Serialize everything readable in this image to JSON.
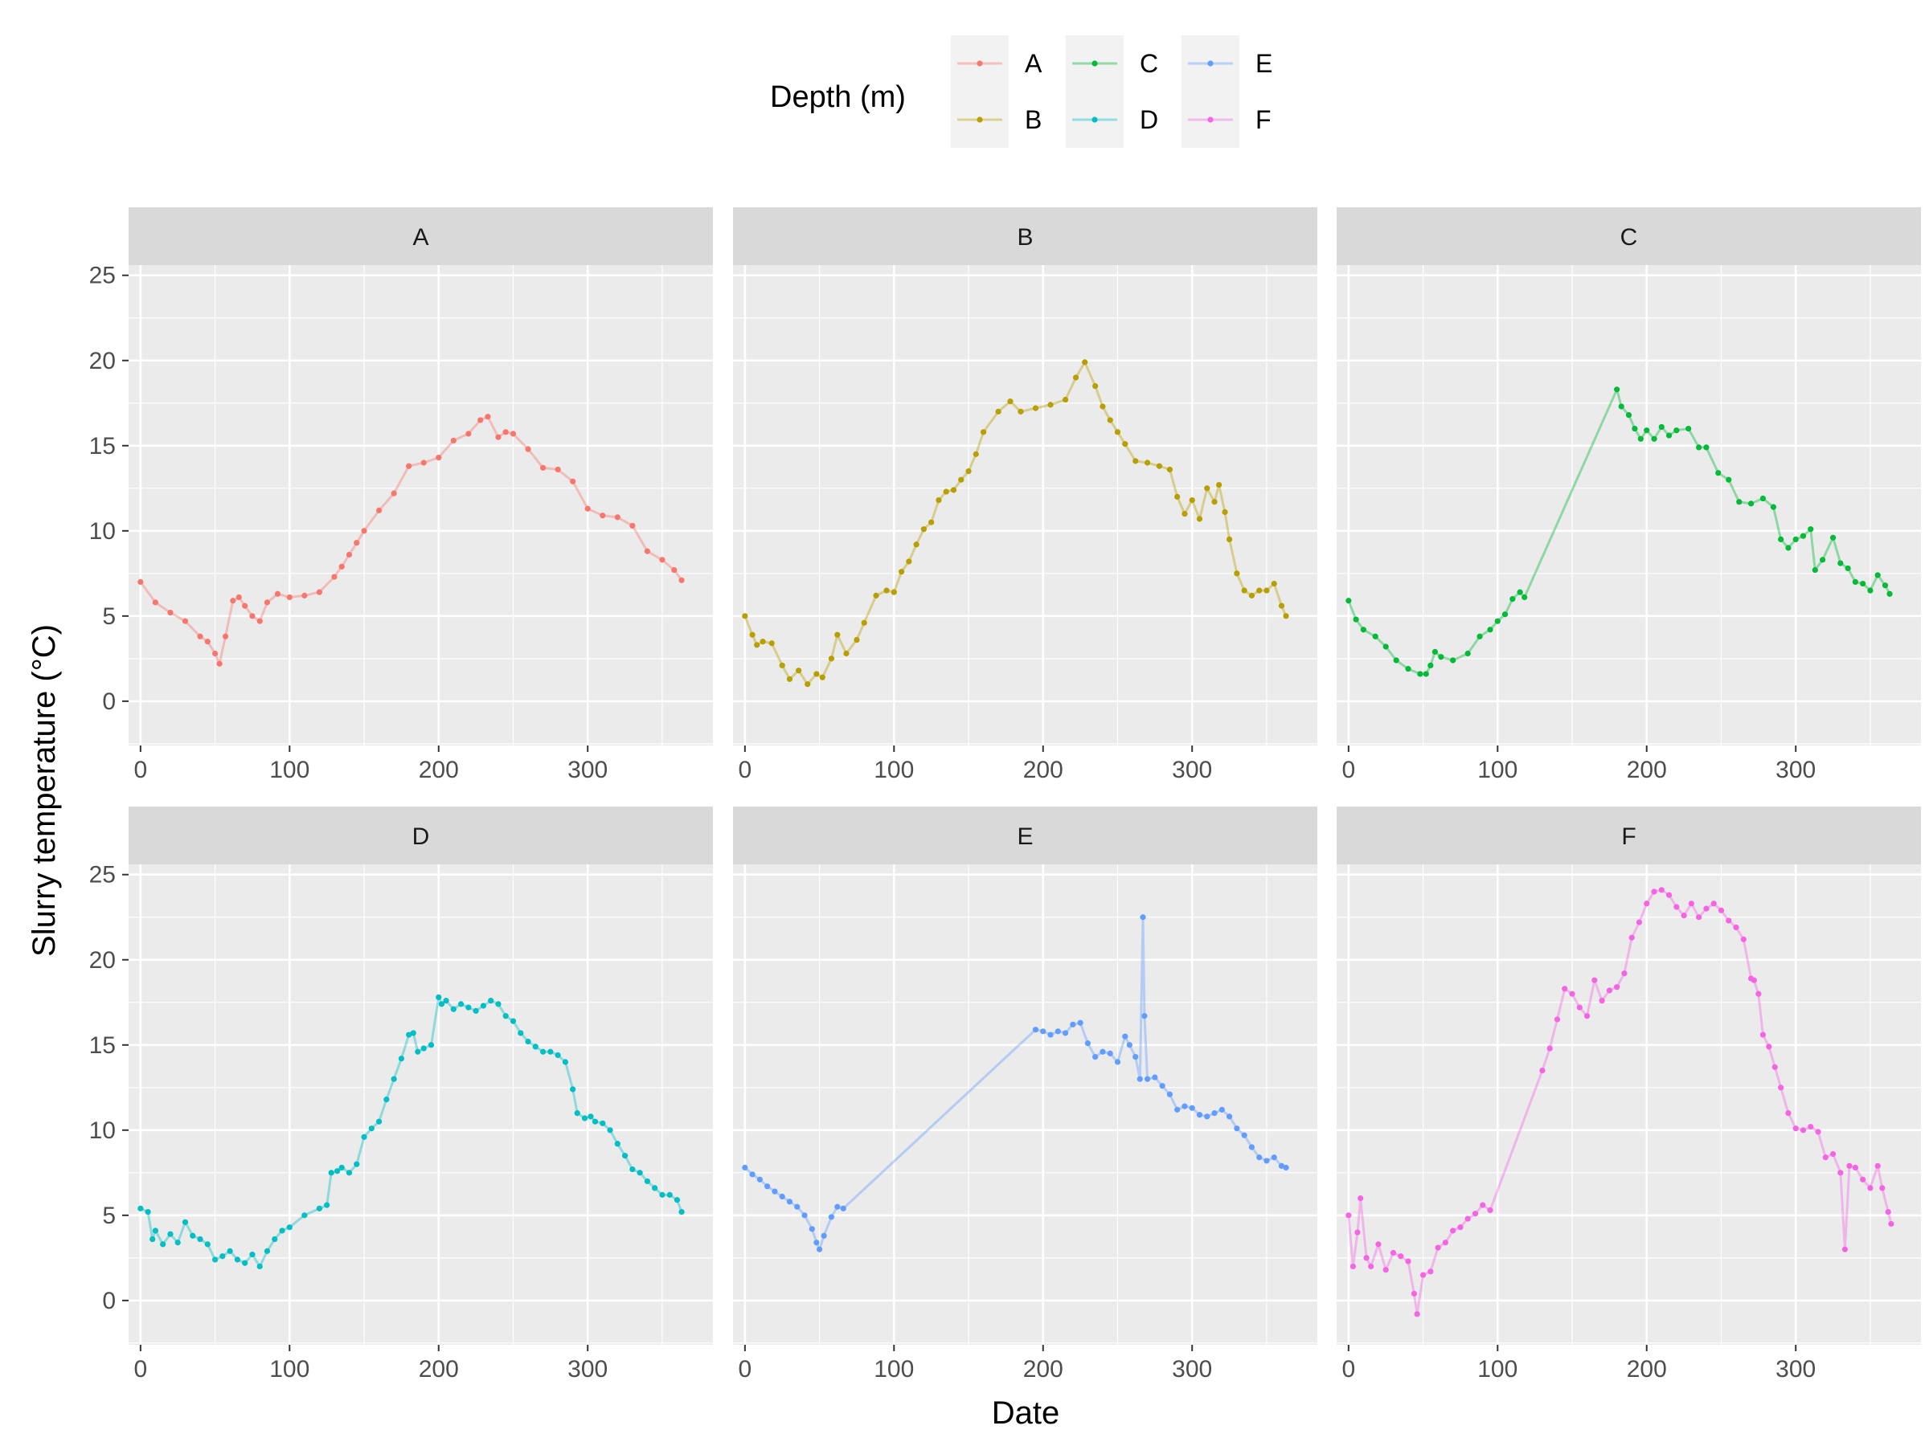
{
  "chart_data": {
    "type": "line",
    "xlabel": "Date",
    "ylabel": "Slurry temperature (°C)",
    "xlim": [
      -8,
      384
    ],
    "ylim": [
      -2.6,
      25.6
    ],
    "x_ticks": [
      0,
      100,
      200,
      300
    ],
    "y_ticks": [
      0,
      5,
      10,
      15,
      20,
      25
    ],
    "grid": true,
    "legend": {
      "title": "Depth (m)",
      "position": "top",
      "entries": [
        "A",
        "B",
        "C",
        "D",
        "E",
        "F"
      ]
    },
    "colors": {
      "A": "#F8766D",
      "B": "#B79F00",
      "C": "#00BA38",
      "D": "#00BFC4",
      "E": "#619CFF",
      "F": "#F564E3",
      "panel_bg": "#EBEBEB",
      "strip_bg": "#D9D9D9",
      "grid": "#FFFFFF"
    },
    "series": [
      {
        "name": "A",
        "x": [
          0,
          10,
          20,
          30,
          40,
          45,
          50,
          53,
          57,
          62,
          66,
          70,
          75,
          80,
          85,
          92,
          100,
          110,
          120,
          130,
          135,
          140,
          145,
          150,
          160,
          170,
          180,
          190,
          200,
          210,
          220,
          228,
          233,
          240,
          245,
          250,
          260,
          270,
          280,
          290,
          300,
          310,
          320,
          330,
          340,
          350,
          358,
          363
        ],
        "y": [
          7.0,
          5.8,
          5.2,
          4.7,
          3.8,
          3.5,
          2.8,
          2.2,
          3.8,
          5.9,
          6.1,
          5.6,
          5.0,
          4.7,
          5.8,
          6.3,
          6.1,
          6.2,
          6.4,
          7.3,
          7.9,
          8.6,
          9.3,
          10.0,
          11.2,
          12.2,
          13.8,
          14.0,
          14.3,
          15.3,
          15.7,
          16.5,
          16.7,
          15.5,
          15.8,
          15.7,
          14.8,
          13.7,
          13.6,
          12.9,
          11.3,
          10.9,
          10.8,
          10.3,
          8.8,
          8.3,
          7.7,
          7.1
        ]
      },
      {
        "name": "B",
        "x": [
          0,
          5,
          8,
          12,
          18,
          25,
          30,
          36,
          42,
          48,
          52,
          58,
          62,
          68,
          75,
          80,
          88,
          95,
          100,
          105,
          110,
          115,
          120,
          125,
          130,
          135,
          140,
          145,
          150,
          155,
          160,
          170,
          178,
          185,
          195,
          205,
          215,
          222,
          228,
          235,
          240,
          245,
          250,
          255,
          262,
          270,
          278,
          285,
          290,
          295,
          300,
          305,
          310,
          315,
          318,
          322,
          325,
          330,
          335,
          340,
          345,
          350,
          355,
          360,
          363
        ],
        "y": [
          5.0,
          3.9,
          3.3,
          3.5,
          3.4,
          2.1,
          1.3,
          1.8,
          1.0,
          1.6,
          1.4,
          2.5,
          3.9,
          2.8,
          3.6,
          4.6,
          6.2,
          6.5,
          6.4,
          7.6,
          8.2,
          9.2,
          10.1,
          10.5,
          11.8,
          12.3,
          12.4,
          13.0,
          13.5,
          14.5,
          15.8,
          17.0,
          17.6,
          17.0,
          17.2,
          17.4,
          17.7,
          19.0,
          19.9,
          18.5,
          17.3,
          16.5,
          15.8,
          15.1,
          14.1,
          14.0,
          13.8,
          13.6,
          12.0,
          11.0,
          11.8,
          10.7,
          12.5,
          11.7,
          12.7,
          11.1,
          9.5,
          7.5,
          6.5,
          6.2,
          6.5,
          6.5,
          6.9,
          5.6,
          5.0
        ]
      },
      {
        "name": "C",
        "x": [
          0,
          5,
          10,
          18,
          25,
          32,
          40,
          48,
          52,
          55,
          58,
          62,
          70,
          80,
          88,
          95,
          100,
          105,
          110,
          115,
          118,
          180,
          183,
          188,
          192,
          196,
          200,
          205,
          210,
          215,
          220,
          228,
          235,
          240,
          248,
          255,
          262,
          270,
          278,
          285,
          290,
          295,
          300,
          305,
          310,
          313,
          318,
          325,
          330,
          335,
          340,
          345,
          350,
          355,
          360,
          363
        ],
        "y": [
          5.9,
          4.8,
          4.2,
          3.8,
          3.2,
          2.4,
          1.9,
          1.6,
          1.6,
          2.1,
          2.9,
          2.6,
          2.4,
          2.8,
          3.8,
          4.2,
          4.7,
          5.1,
          6.0,
          6.4,
          6.1,
          18.3,
          17.3,
          16.8,
          16.0,
          15.4,
          15.9,
          15.4,
          16.1,
          15.6,
          15.9,
          16.0,
          14.9,
          14.9,
          13.4,
          13.0,
          11.7,
          11.6,
          11.9,
          11.4,
          9.5,
          9.0,
          9.5,
          9.7,
          10.1,
          7.7,
          8.3,
          9.6,
          8.1,
          7.8,
          7.0,
          6.9,
          6.5,
          7.4,
          6.8,
          6.3
        ]
      },
      {
        "name": "D",
        "x": [
          0,
          5,
          8,
          10,
          15,
          20,
          25,
          30,
          35,
          40,
          45,
          50,
          55,
          60,
          65,
          70,
          75,
          80,
          85,
          90,
          95,
          100,
          110,
          120,
          125,
          128,
          132,
          135,
          140,
          145,
          150,
          155,
          160,
          165,
          170,
          175,
          180,
          183,
          186,
          190,
          195,
          200,
          202,
          205,
          210,
          215,
          220,
          225,
          230,
          235,
          240,
          245,
          250,
          255,
          260,
          265,
          270,
          275,
          280,
          285,
          290,
          293,
          298,
          302,
          305,
          310,
          315,
          320,
          325,
          330,
          335,
          340,
          345,
          350,
          355,
          360,
          363
        ],
        "y": [
          5.4,
          5.2,
          3.6,
          4.1,
          3.3,
          3.9,
          3.4,
          4.6,
          3.8,
          3.6,
          3.3,
          2.4,
          2.6,
          2.9,
          2.4,
          2.2,
          2.7,
          2.0,
          2.9,
          3.6,
          4.1,
          4.3,
          5.0,
          5.4,
          5.6,
          7.5,
          7.6,
          7.8,
          7.5,
          8.0,
          9.6,
          10.1,
          10.5,
          11.8,
          13.0,
          14.2,
          15.6,
          15.7,
          14.6,
          14.8,
          15.0,
          17.8,
          17.4,
          17.6,
          17.1,
          17.4,
          17.2,
          17.0,
          17.3,
          17.6,
          17.4,
          16.7,
          16.4,
          15.7,
          15.2,
          14.9,
          14.6,
          14.6,
          14.4,
          14.0,
          12.4,
          11.0,
          10.7,
          10.8,
          10.5,
          10.4,
          10.0,
          9.2,
          8.5,
          7.7,
          7.5,
          7.0,
          6.6,
          6.2,
          6.2,
          5.9,
          5.2
        ]
      },
      {
        "name": "E",
        "x": [
          0,
          5,
          10,
          15,
          20,
          25,
          30,
          35,
          40,
          45,
          48,
          50,
          53,
          58,
          62,
          66,
          195,
          200,
          205,
          210,
          215,
          220,
          225,
          230,
          235,
          240,
          245,
          250,
          255,
          258,
          262,
          265,
          267,
          268,
          270,
          275,
          280,
          285,
          290,
          295,
          300,
          305,
          310,
          315,
          320,
          325,
          330,
          335,
          340,
          345,
          350,
          355,
          360,
          363
        ],
        "y": [
          7.8,
          7.4,
          7.1,
          6.7,
          6.4,
          6.1,
          5.8,
          5.5,
          5.0,
          4.2,
          3.4,
          3.0,
          3.8,
          4.9,
          5.5,
          5.4,
          15.9,
          15.8,
          15.6,
          15.8,
          15.7,
          16.2,
          16.3,
          15.1,
          14.3,
          14.6,
          14.5,
          14.0,
          15.5,
          15.0,
          14.3,
          13.0,
          22.5,
          16.7,
          13.0,
          13.1,
          12.6,
          12.1,
          11.2,
          11.4,
          11.3,
          10.9,
          10.8,
          11.0,
          11.2,
          10.8,
          10.1,
          9.7,
          9.0,
          8.4,
          8.2,
          8.4,
          7.9,
          7.8
        ]
      },
      {
        "name": "F",
        "x": [
          0,
          3,
          6,
          8,
          12,
          15,
          20,
          25,
          30,
          35,
          40,
          44,
          46,
          50,
          55,
          60,
          65,
          70,
          75,
          80,
          85,
          90,
          95,
          130,
          135,
          140,
          145,
          150,
          155,
          160,
          165,
          170,
          175,
          180,
          185,
          190,
          195,
          200,
          205,
          210,
          215,
          220,
          225,
          230,
          235,
          240,
          245,
          250,
          255,
          260,
          265,
          270,
          272,
          275,
          278,
          282,
          286,
          290,
          295,
          300,
          305,
          310,
          315,
          320,
          325,
          330,
          333,
          336,
          340,
          345,
          350,
          355,
          358,
          362,
          364
        ],
        "y": [
          5.0,
          2.0,
          4.0,
          6.0,
          2.5,
          2.0,
          3.3,
          1.8,
          2.8,
          2.6,
          2.3,
          0.4,
          -0.8,
          1.5,
          1.7,
          3.1,
          3.4,
          4.1,
          4.3,
          4.8,
          5.1,
          5.6,
          5.3,
          13.5,
          14.8,
          16.5,
          18.3,
          18.0,
          17.2,
          16.7,
          18.8,
          17.6,
          18.2,
          18.4,
          19.2,
          21.3,
          22.2,
          23.3,
          24.0,
          24.1,
          23.8,
          23.1,
          22.6,
          23.3,
          22.5,
          23.0,
          23.3,
          22.9,
          22.3,
          21.9,
          21.2,
          18.9,
          18.8,
          18.0,
          15.6,
          14.9,
          13.7,
          12.5,
          11.0,
          10.1,
          10.0,
          10.2,
          9.9,
          8.4,
          8.6,
          7.5,
          3.0,
          7.9,
          7.8,
          7.1,
          6.6,
          7.9,
          6.6,
          5.2,
          4.5
        ]
      }
    ]
  }
}
